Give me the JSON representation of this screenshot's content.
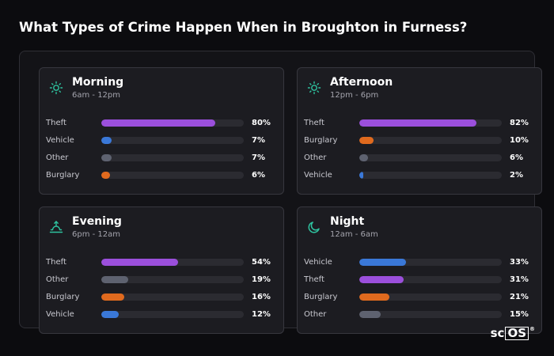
{
  "page": {
    "title": "What Types of Crime Happen When in Broughton in Furness?"
  },
  "colors": {
    "theft": "#9b4fdc",
    "vehicle": "#3a78d8",
    "other": "#5e6270",
    "burglary": "#e06a1e",
    "icon_accent": "#2ec4a0"
  },
  "cards": [
    {
      "title": "Morning",
      "subtitle": "6am - 12pm",
      "icon": "sun-icon",
      "rows": [
        {
          "label": "Theft",
          "pct_label": "80%",
          "value": 80,
          "kind": "theft"
        },
        {
          "label": "Vehicle",
          "pct_label": "7%",
          "value": 7,
          "kind": "vehicle"
        },
        {
          "label": "Other",
          "pct_label": "7%",
          "value": 7,
          "kind": "other"
        },
        {
          "label": "Burglary",
          "pct_label": "6%",
          "value": 6,
          "kind": "burglary"
        }
      ]
    },
    {
      "title": "Afternoon",
      "subtitle": "12pm - 6pm",
      "icon": "sun-icon",
      "rows": [
        {
          "label": "Theft",
          "pct_label": "82%",
          "value": 82,
          "kind": "theft"
        },
        {
          "label": "Burglary",
          "pct_label": "10%",
          "value": 10,
          "kind": "burglary"
        },
        {
          "label": "Other",
          "pct_label": "6%",
          "value": 6,
          "kind": "other"
        },
        {
          "label": "Vehicle",
          "pct_label": "2%",
          "value": 2,
          "kind": "vehicle"
        }
      ]
    },
    {
      "title": "Evening",
      "subtitle": "6pm - 12am",
      "icon": "sunset-icon",
      "rows": [
        {
          "label": "Theft",
          "pct_label": "54%",
          "value": 54,
          "kind": "theft"
        },
        {
          "label": "Other",
          "pct_label": "19%",
          "value": 19,
          "kind": "other"
        },
        {
          "label": "Burglary",
          "pct_label": "16%",
          "value": 16,
          "kind": "burglary"
        },
        {
          "label": "Vehicle",
          "pct_label": "12%",
          "value": 12,
          "kind": "vehicle"
        }
      ]
    },
    {
      "title": "Night",
      "subtitle": "12am - 6am",
      "icon": "moon-icon",
      "rows": [
        {
          "label": "Vehicle",
          "pct_label": "33%",
          "value": 33,
          "kind": "vehicle"
        },
        {
          "label": "Theft",
          "pct_label": "31%",
          "value": 31,
          "kind": "theft"
        },
        {
          "label": "Burglary",
          "pct_label": "21%",
          "value": 21,
          "kind": "burglary"
        },
        {
          "label": "Other",
          "pct_label": "15%",
          "value": 15,
          "kind": "other"
        }
      ]
    }
  ],
  "logo": {
    "prefix": "sc",
    "boxed": "OS",
    "mark": "®"
  }
}
